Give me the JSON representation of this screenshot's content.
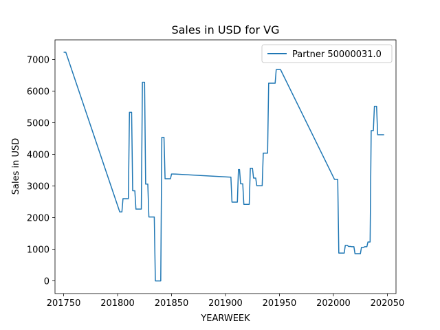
{
  "chart_data": {
    "type": "line",
    "title": "Sales in USD for VG",
    "xlabel": "YEARWEEK",
    "ylabel": "Sales in USD",
    "xlim": [
      201742,
      202058
    ],
    "ylim": [
      -400,
      7620
    ],
    "xticks": [
      201750,
      201800,
      201850,
      201900,
      201950,
      202000,
      202050
    ],
    "yticks": [
      0,
      1000,
      2000,
      3000,
      4000,
      5000,
      6000,
      7000
    ],
    "grid": false,
    "legend_position": "top-right",
    "series": [
      {
        "name": "Partner 50000031.0",
        "color": "#1f77b4",
        "x": [
          201750,
          201752,
          201802,
          201804,
          201805,
          201808,
          201809,
          201810,
          201811,
          201813,
          201814,
          201816,
          201817,
          201819,
          201820,
          201822,
          201823,
          201825,
          201826,
          201828,
          201829,
          201831,
          201832,
          201834,
          201835,
          201837,
          201838,
          201840,
          201841,
          201843,
          201844,
          201846,
          201847,
          201849,
          201850,
          201852,
          201904,
          201905,
          201906,
          201908,
          201909,
          201911,
          201912,
          201913,
          201914,
          201916,
          201917,
          201919,
          201920,
          201922,
          201923,
          201925,
          201926,
          201928,
          201929,
          201931,
          201932,
          201934,
          201935,
          201936,
          201937,
          201939,
          201940,
          201942,
          201943,
          201946,
          201947,
          201950,
          201951,
          202001,
          202002,
          202004,
          202005,
          202007,
          202008,
          202010,
          202011,
          202013,
          202014,
          202016,
          202017,
          202019,
          202020,
          202022,
          202023,
          202025,
          202026,
          202028,
          202029,
          202031,
          202032,
          202034,
          202035,
          202037,
          202038,
          202040,
          202041,
          202043,
          202044,
          202046,
          202047
        ],
        "y": [
          7230,
          7230,
          2180,
          2180,
          2600,
          2600,
          2600,
          2600,
          5330,
          5330,
          2850,
          2850,
          2270,
          2270,
          2270,
          2270,
          6280,
          6280,
          3060,
          3060,
          2020,
          2020,
          2020,
          2020,
          0,
          0,
          0,
          0,
          4540,
          4540,
          3230,
          3230,
          3230,
          3230,
          3380,
          3380,
          3280,
          3280,
          2490,
          2490,
          2490,
          2490,
          3520,
          3520,
          3070,
          3070,
          2420,
          2420,
          2420,
          2420,
          3560,
          3560,
          3250,
          3250,
          3010,
          3010,
          3010,
          3010,
          4040,
          4040,
          4040,
          4040,
          6250,
          6250,
          6250,
          6250,
          6680,
          6680,
          6680,
          3210,
          3210,
          3210,
          880,
          880,
          880,
          880,
          1120,
          1120,
          1090,
          1090,
          1080,
          1080,
          860,
          860,
          860,
          860,
          1060,
          1060,
          1080,
          1080,
          1230,
          1230,
          4750,
          4750,
          5520,
          5520,
          4620,
          4620,
          4620,
          4620,
          4620
        ]
      }
    ]
  }
}
